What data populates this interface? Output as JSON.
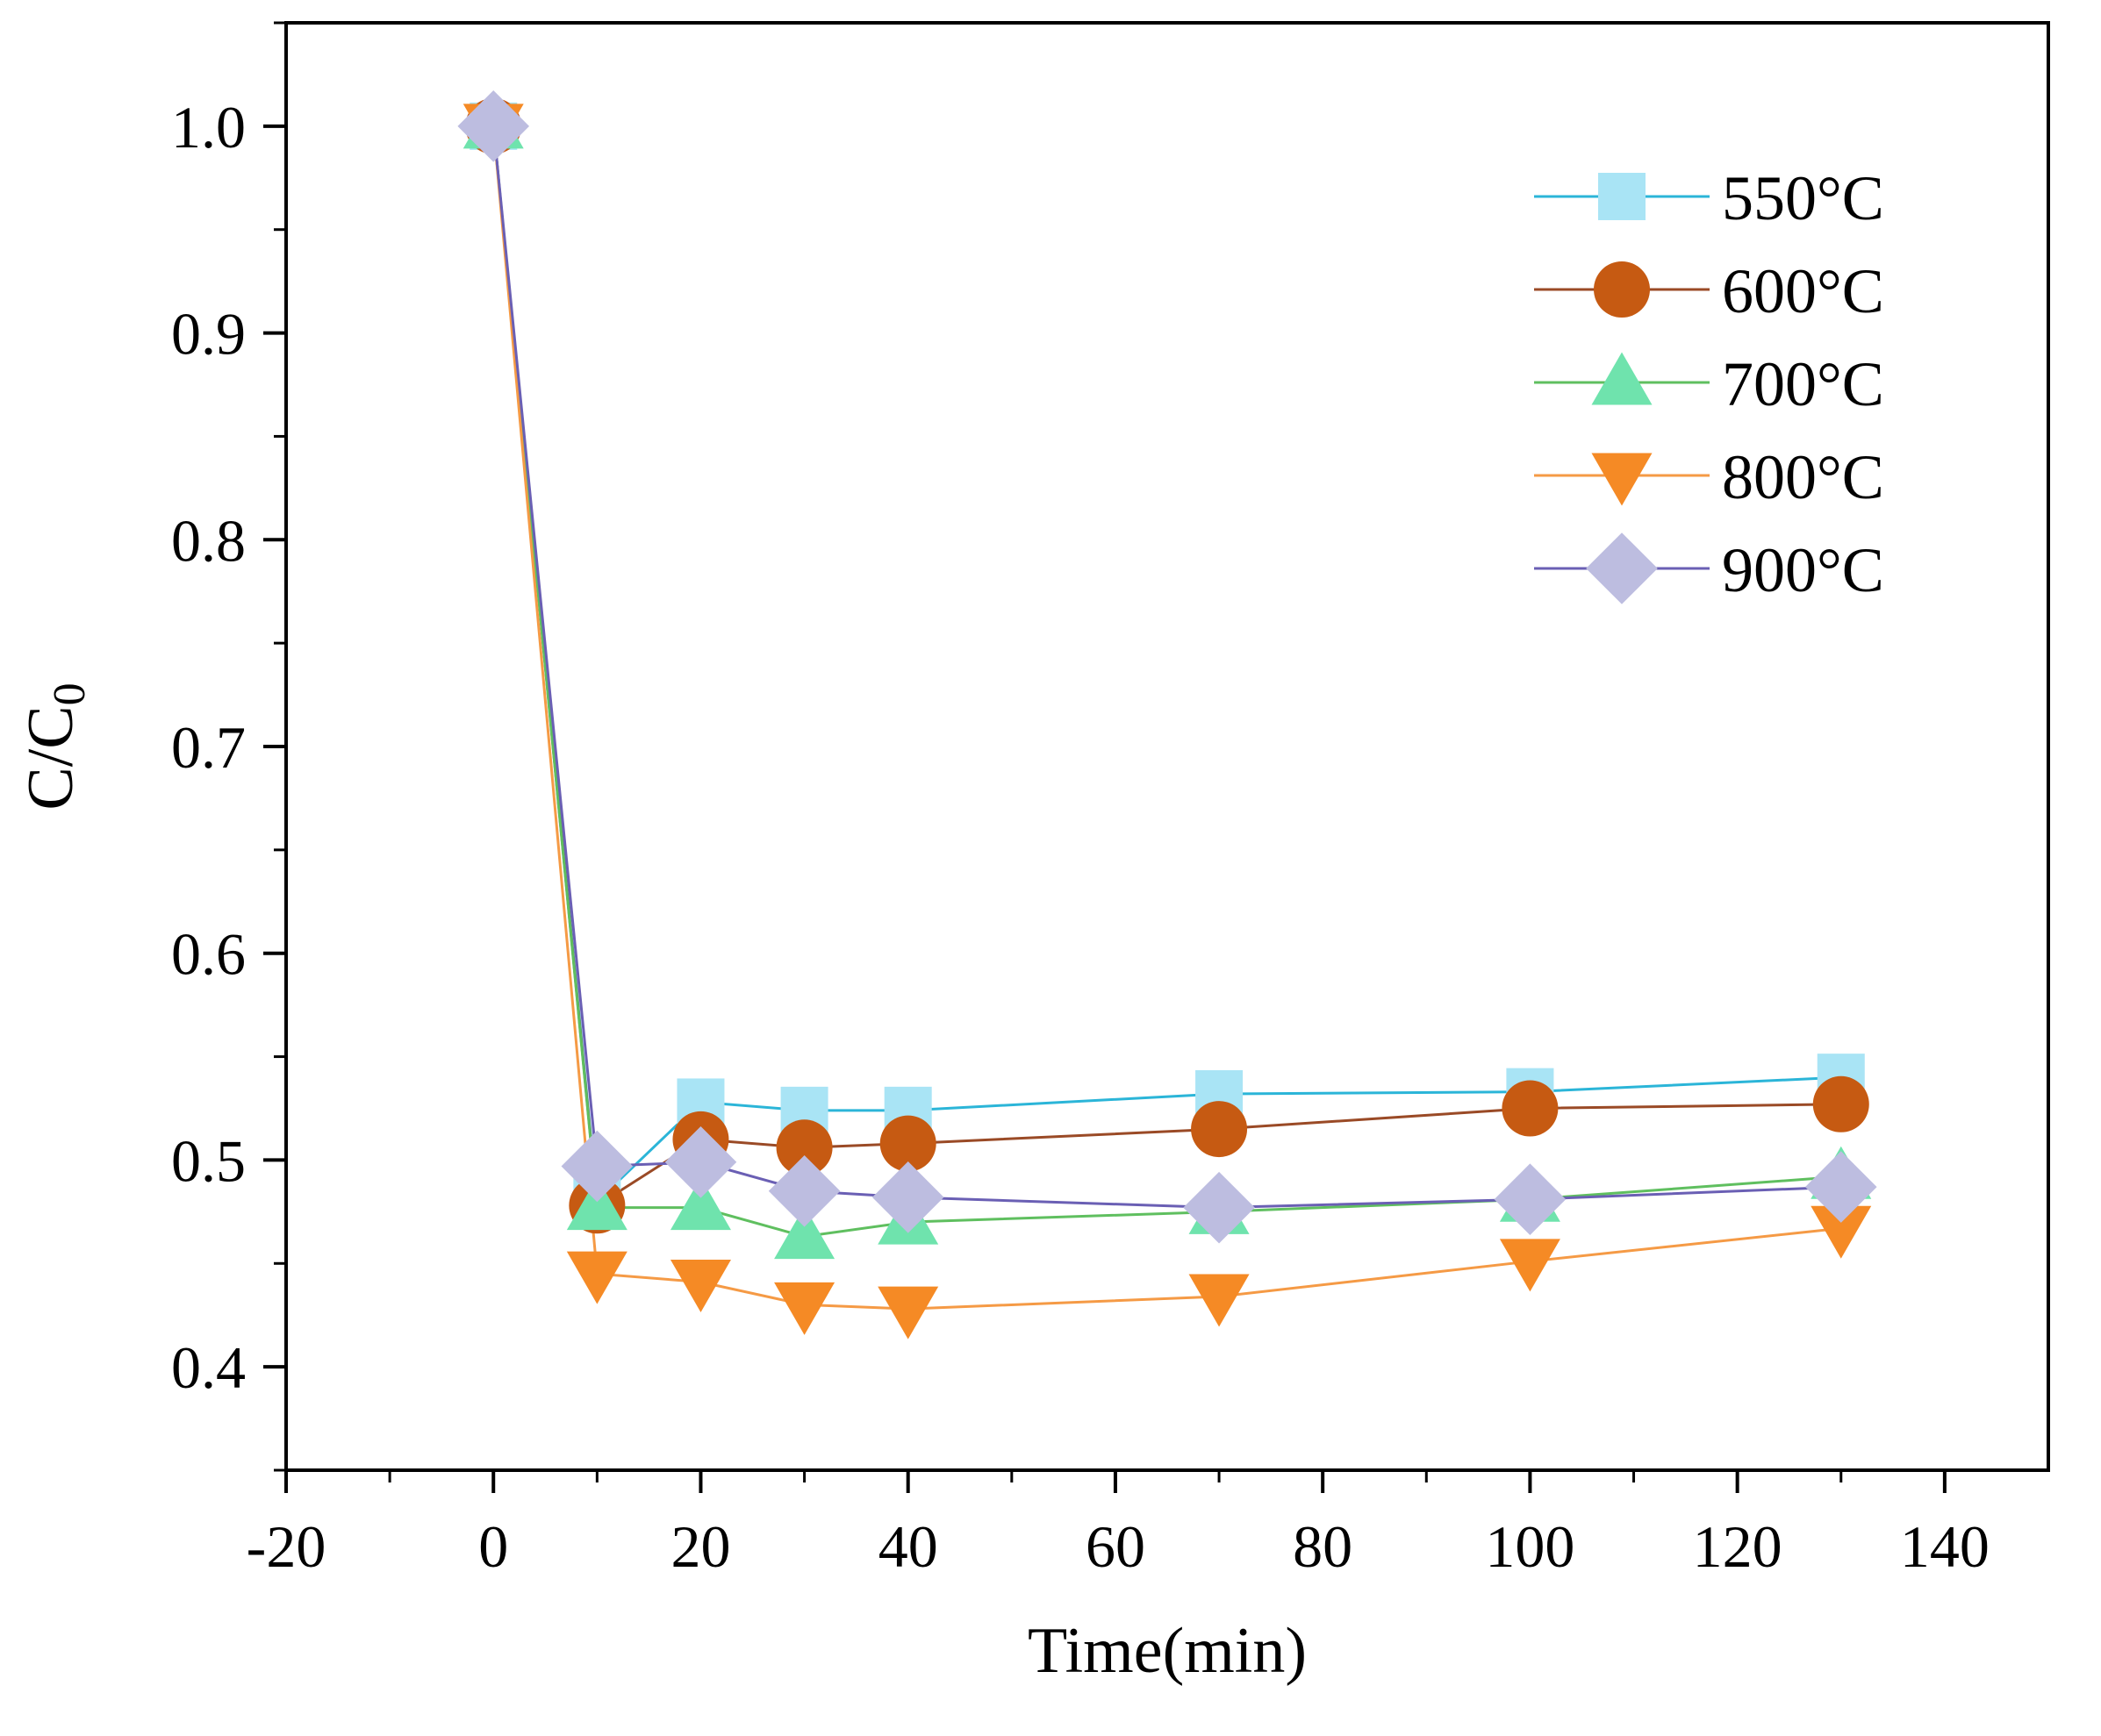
{
  "chart_data": {
    "type": "line",
    "title": "",
    "xlabel": "Time(min)",
    "ylabel_main": "C/C",
    "ylabel_sub": "0",
    "xlim": [
      -20,
      150
    ],
    "ylim": [
      0.35,
      1.05
    ],
    "xticks": [
      -20,
      0,
      20,
      40,
      60,
      80,
      100,
      120,
      140
    ],
    "xtick_labels": [
      "-20",
      "0",
      "20",
      "40",
      "60",
      "80",
      "100",
      "120",
      "140"
    ],
    "yticks": [
      0.4,
      0.5,
      0.6,
      0.7,
      0.8,
      0.9,
      1.0
    ],
    "ytick_labels": [
      "0.4",
      "0.5",
      "0.6",
      "0.7",
      "0.8",
      "0.9",
      "1.0"
    ],
    "grid": false,
    "legend_position": "top-right",
    "x": [
      0,
      10,
      20,
      30,
      40,
      70,
      100,
      130
    ],
    "series": [
      {
        "name": "550°C",
        "marker": "square",
        "line_color": "#2bb5d8",
        "marker_color": "#a9e4f5",
        "values": [
          1.0,
          0.48,
          0.528,
          0.524,
          0.524,
          0.532,
          0.533,
          0.54
        ]
      },
      {
        "name": "600°C",
        "marker": "circle",
        "line_color": "#9a4a26",
        "marker_color": "#c65a12",
        "values": [
          1.0,
          0.478,
          0.51,
          0.506,
          0.508,
          0.515,
          0.525,
          0.527
        ]
      },
      {
        "name": "700°C",
        "marker": "triangle-up",
        "line_color": "#5fbf5f",
        "marker_color": "#6fe3ad",
        "values": [
          1.0,
          0.477,
          0.477,
          0.463,
          0.47,
          0.475,
          0.481,
          0.492
        ]
      },
      {
        "name": "800°C",
        "marker": "triangle-down",
        "line_color": "#f59a45",
        "marker_color": "#f58a25",
        "values": [
          1.0,
          0.445,
          0.441,
          0.43,
          0.428,
          0.434,
          0.451,
          0.467
        ]
      },
      {
        "name": "900°C",
        "marker": "diamond",
        "line_color": "#6a5fb4",
        "marker_color": "#bdbde0",
        "values": [
          1.0,
          0.497,
          0.499,
          0.485,
          0.482,
          0.477,
          0.481,
          0.487
        ]
      }
    ]
  }
}
